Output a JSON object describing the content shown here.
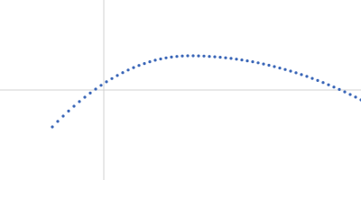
{
  "chart_data": {
    "type": "scatter",
    "color": "#3b67b8",
    "xlim": [
      -115,
      285
    ],
    "ylim": [
      -100,
      100
    ],
    "x": [
      -57,
      -51,
      -45,
      -39,
      -33,
      -27,
      -21,
      -15,
      -9,
      -3,
      3,
      9,
      15,
      21,
      27,
      33,
      39,
      45,
      51,
      57,
      63,
      69,
      75,
      81,
      87,
      93,
      99,
      105,
      111,
      117,
      123,
      129,
      135,
      141,
      147,
      153,
      159,
      165,
      171,
      177,
      183,
      189,
      195,
      201,
      207,
      213,
      219,
      225,
      231,
      237,
      243,
      249,
      255,
      261,
      267,
      273,
      279,
      285
    ],
    "values": [
      -41.0,
      -34.9,
      -29.0,
      -23.4,
      -18.0,
      -12.9,
      -8.0,
      -3.4,
      1.0,
      5.2,
      9.1,
      12.7,
      16.1,
      19.3,
      22.2,
      24.9,
      27.3,
      29.4,
      31.4,
      33.1,
      34.5,
      35.7,
      36.6,
      37.3,
      37.8,
      38.0,
      38.0,
      37.9,
      37.7,
      37.3,
      36.9,
      36.4,
      35.8,
      35.1,
      34.3,
      33.4,
      32.4,
      31.4,
      30.2,
      28.9,
      27.5,
      26.0,
      24.4,
      22.8,
      21.0,
      19.1,
      17.1,
      15.1,
      12.9,
      10.6,
      8.3,
      5.8,
      3.3,
      0.6,
      -2.1,
      -5.0,
      -7.9,
      -11.0
    ]
  }
}
